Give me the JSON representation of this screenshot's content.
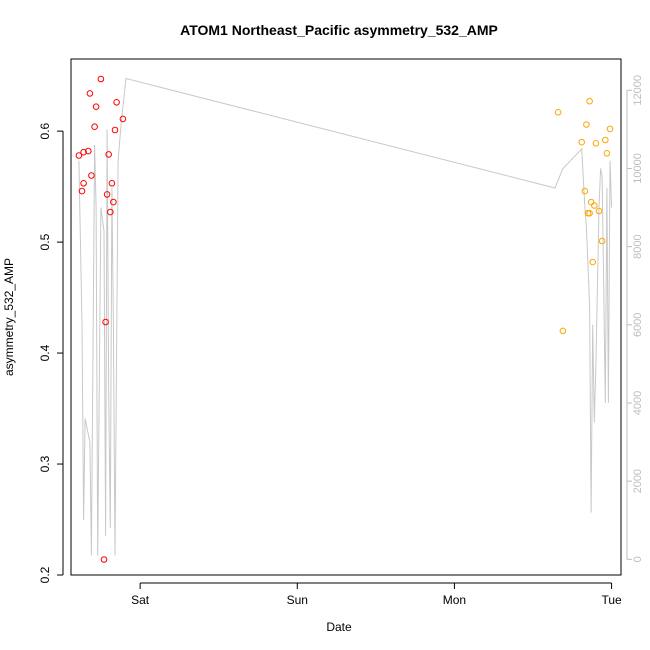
{
  "chart_data": {
    "type": "scatter",
    "title": "ATOM1 Northeast_Pacific asymmetry_532_AMP",
    "xlabel": "Date",
    "ylabel": "asymmetry_532_AMP",
    "x_ticks": [
      "Sat",
      "Sun",
      "Mon",
      "Tue"
    ],
    "x_tick_values": [
      1.0,
      2.0,
      3.0,
      4.0
    ],
    "xlim": [
      0.56,
      4.06
    ],
    "ylim": [
      0.2,
      0.665
    ],
    "y_ticks": [
      "0.2",
      "0.3",
      "0.4",
      "0.5",
      "0.6"
    ],
    "y_tick_values": [
      0.2,
      0.3,
      0.4,
      0.5,
      0.6
    ],
    "y2_ticks": [
      "0",
      "2000",
      "4000",
      "6000",
      "8000",
      "10000",
      "12000"
    ],
    "y2_tick_values": [
      0,
      2000,
      4000,
      6000,
      8000,
      10000,
      12000
    ],
    "y2lim": [
      -400,
      12800
    ],
    "grid": false,
    "series": [
      {
        "color": "#ff0000",
        "points": [
          [
            0.61,
            0.578
          ],
          [
            0.63,
            0.546
          ],
          [
            0.64,
            0.553
          ],
          [
            0.64,
            0.581
          ],
          [
            0.67,
            0.582
          ],
          [
            0.68,
            0.634
          ],
          [
            0.69,
            0.56
          ],
          [
            0.71,
            0.604
          ],
          [
            0.72,
            0.622
          ],
          [
            0.75,
            0.647
          ],
          [
            0.77,
            0.214
          ],
          [
            0.78,
            0.428
          ],
          [
            0.79,
            0.543
          ],
          [
            0.8,
            0.579
          ],
          [
            0.81,
            0.527
          ],
          [
            0.82,
            0.553
          ],
          [
            0.83,
            0.536
          ],
          [
            0.84,
            0.601
          ],
          [
            0.85,
            0.626
          ],
          [
            0.89,
            0.611
          ]
        ]
      },
      {
        "color": "#ffa500",
        "points": [
          [
            3.66,
            0.617
          ],
          [
            3.69,
            0.42
          ],
          [
            3.81,
            0.59
          ],
          [
            3.83,
            0.546
          ],
          [
            3.84,
            0.606
          ],
          [
            3.85,
            0.526
          ],
          [
            3.86,
            0.627
          ],
          [
            3.86,
            0.526
          ],
          [
            3.87,
            0.536
          ],
          [
            3.88,
            0.482
          ],
          [
            3.89,
            0.533
          ],
          [
            3.9,
            0.589
          ],
          [
            3.92,
            0.528
          ],
          [
            3.94,
            0.501
          ],
          [
            3.96,
            0.592
          ],
          [
            3.97,
            0.58
          ],
          [
            3.99,
            0.602
          ]
        ]
      }
    ],
    "line_series": {
      "color": "#c8c8c8",
      "axis": "right",
      "points": [
        [
          0.61,
          10200
        ],
        [
          0.63,
          6000
        ],
        [
          0.64,
          1000
        ],
        [
          0.65,
          3600
        ],
        [
          0.68,
          3000
        ],
        [
          0.69,
          100
        ],
        [
          0.71,
          10600
        ],
        [
          0.72,
          9000
        ],
        [
          0.73,
          100
        ],
        [
          0.75,
          9000
        ],
        [
          0.77,
          8400
        ],
        [
          0.78,
          600
        ],
        [
          0.79,
          11000
        ],
        [
          0.8,
          4200
        ],
        [
          0.81,
          800
        ],
        [
          0.82,
          9500
        ],
        [
          0.83,
          6000
        ],
        [
          0.84,
          100
        ],
        [
          0.86,
          10200
        ],
        [
          0.88,
          11200
        ],
        [
          0.91,
          12300
        ],
        [
          3.64,
          9500
        ],
        [
          3.69,
          10000
        ],
        [
          3.81,
          10500
        ],
        [
          3.83,
          9000
        ],
        [
          3.84,
          8500
        ],
        [
          3.85,
          7500
        ],
        [
          3.86,
          6500
        ],
        [
          3.87,
          1200
        ],
        [
          3.88,
          6000
        ],
        [
          3.89,
          3500
        ],
        [
          3.9,
          5000
        ],
        [
          3.92,
          9000
        ],
        [
          3.93,
          10000
        ],
        [
          3.94,
          9800
        ],
        [
          3.95,
          7000
        ],
        [
          3.96,
          4000
        ],
        [
          3.97,
          9500
        ],
        [
          3.98,
          4000
        ],
        [
          3.99,
          10200
        ],
        [
          4.0,
          9000
        ]
      ]
    }
  }
}
